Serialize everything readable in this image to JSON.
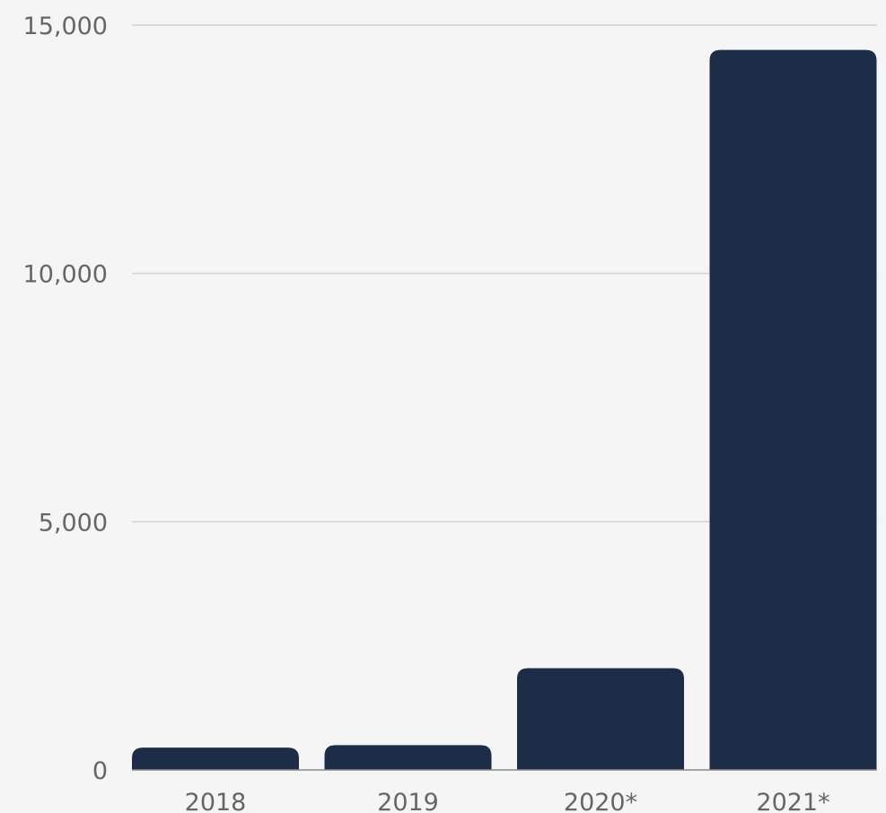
{
  "colors": {
    "background": "#f5f5f5",
    "bar": "#1e2d47",
    "grid": "#d2d2d2",
    "axis": "#8a8a8a",
    "label": "#666666"
  },
  "chart_data": {
    "type": "bar",
    "title": "",
    "xlabel": "",
    "ylabel": "",
    "categories": [
      "2018",
      "2019",
      "2020*",
      "2021*"
    ],
    "values": [
      450,
      500,
      2050,
      14500
    ],
    "ylim": [
      0,
      15000
    ],
    "yticks": [
      0,
      5000,
      10000,
      15000
    ],
    "ytick_labels": [
      "0",
      "5,000",
      "10,000",
      "15,000"
    ],
    "grid": true,
    "legend": "none"
  }
}
